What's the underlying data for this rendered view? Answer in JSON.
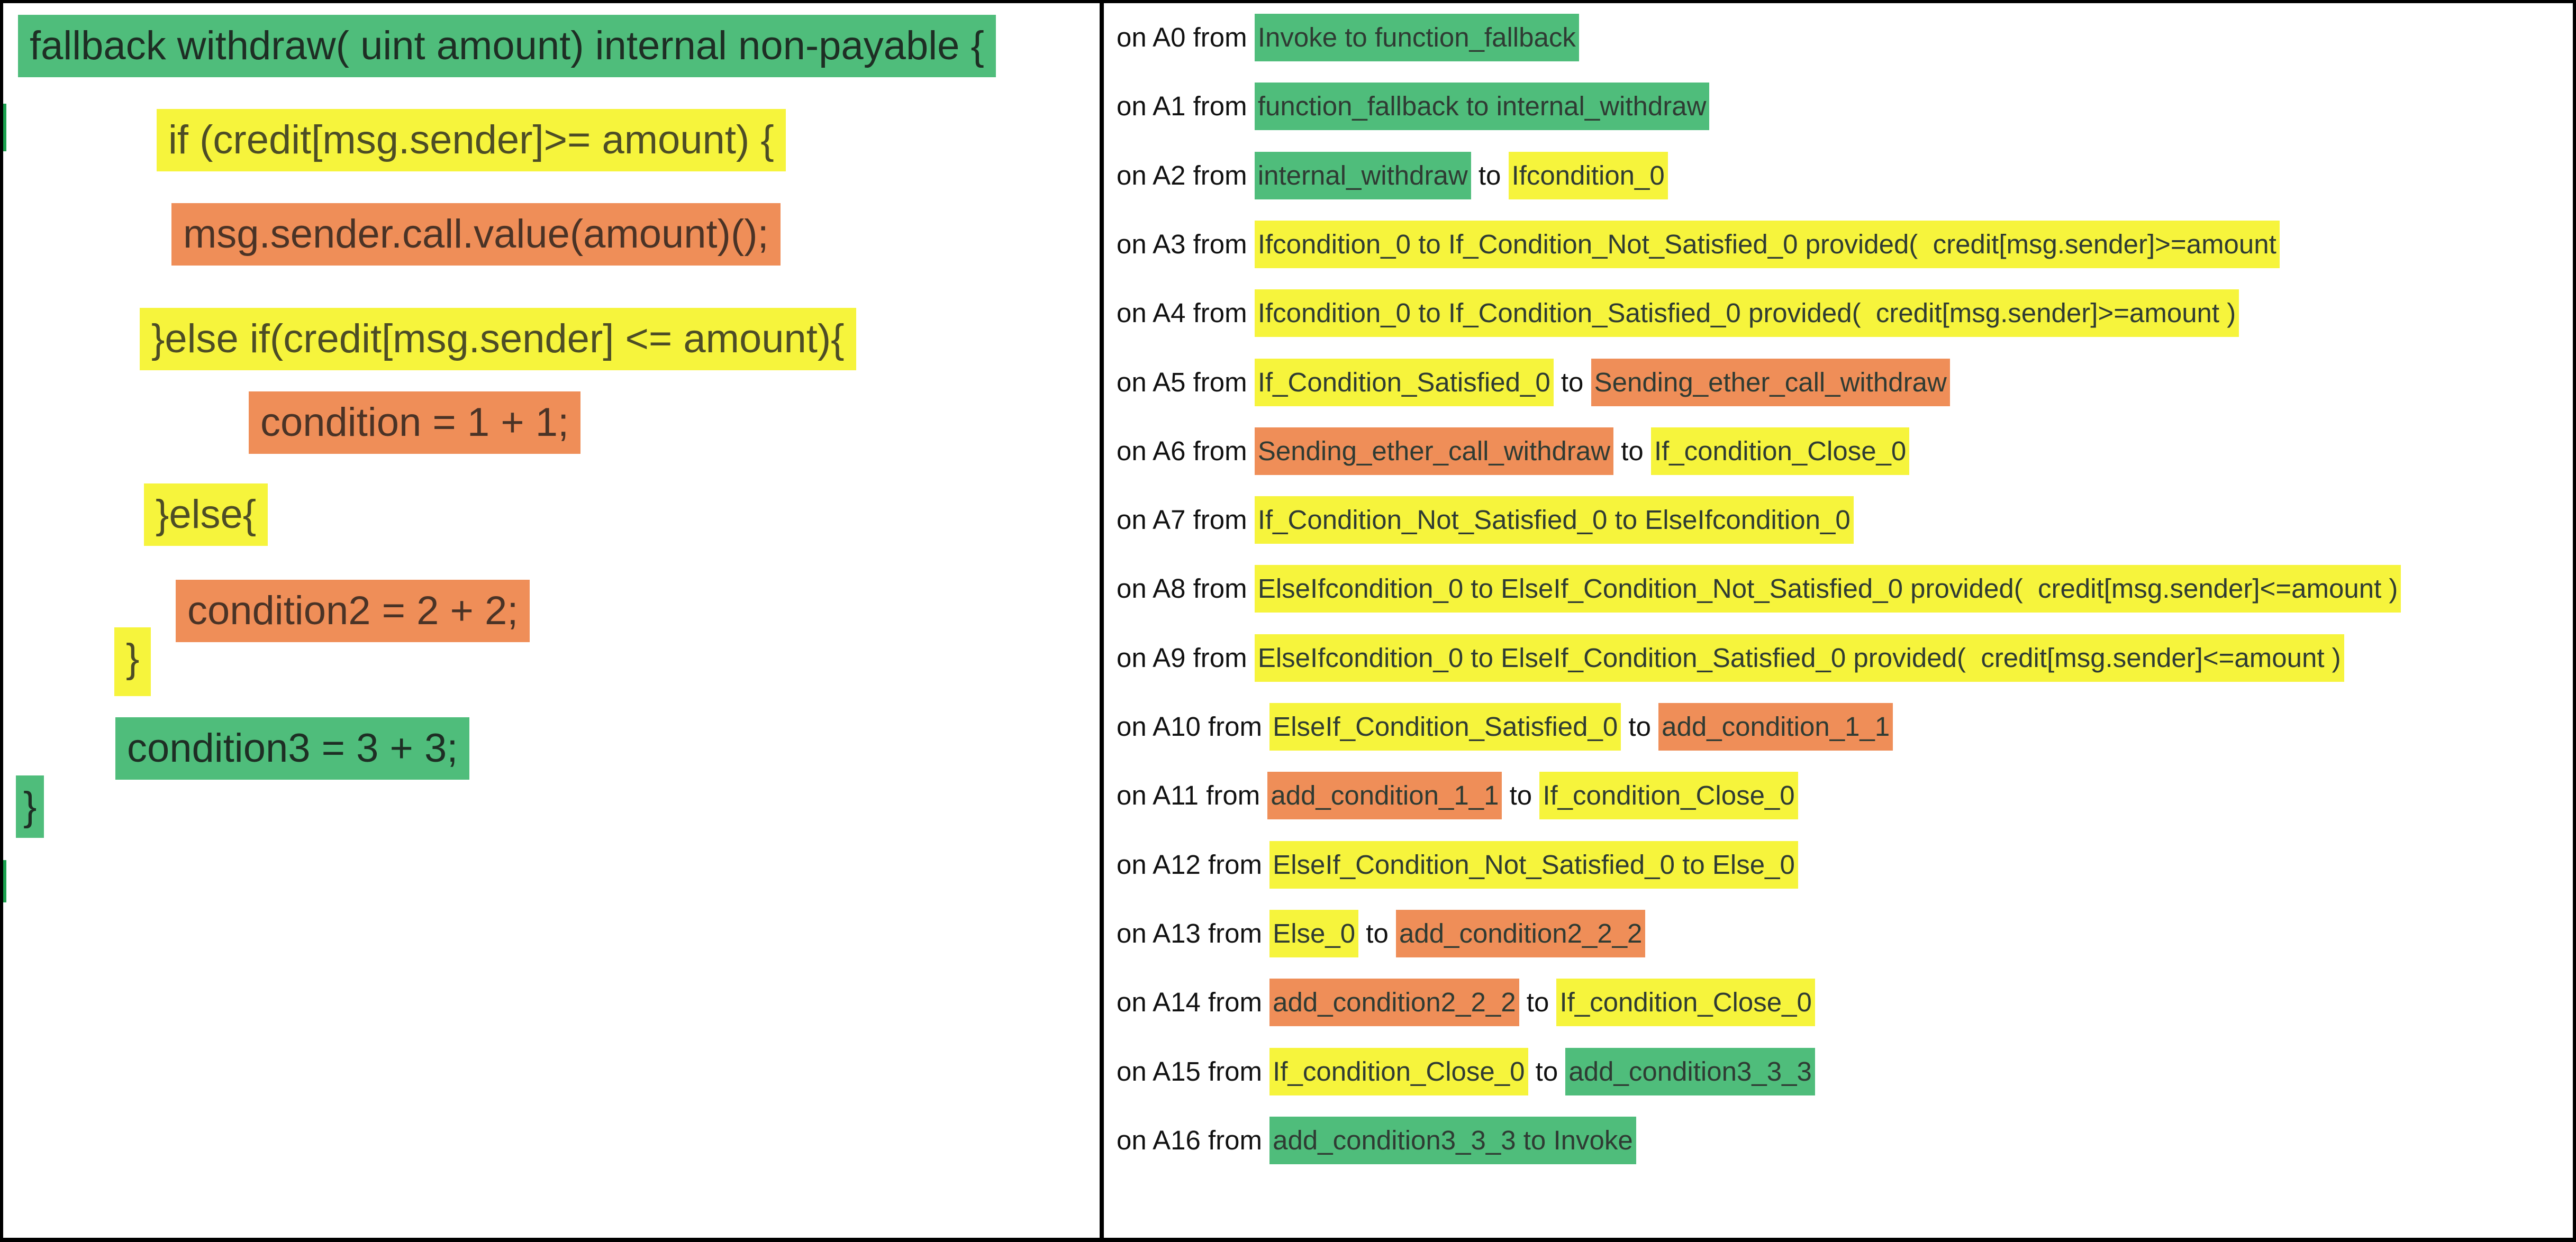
{
  "colors": {
    "green": "#4fbd7b",
    "yellow": "#f6f43c",
    "orange": "#ef8e58",
    "border": "#000000"
  },
  "code": {
    "lines": [
      {
        "text": "fallback withdraw( uint amount) internal non-payable {",
        "color": "green"
      },
      {
        "text": "if (credit[msg.sender]>= amount) {",
        "color": "yellow"
      },
      {
        "text": "msg.sender.call.value(amount)();",
        "color": "orange"
      },
      {
        "text": "}else if(credit[msg.sender] <= amount){",
        "color": "yellow"
      },
      {
        "text": "condition = 1 + 1;",
        "color": "orange"
      },
      {
        "text": "}else{",
        "color": "yellow"
      },
      {
        "text": "condition2 = 2 + 2;",
        "color": "orange"
      },
      {
        "text": "}",
        "color": "yellow"
      },
      {
        "text": "condition3 = 3 + 3;",
        "color": "green"
      },
      {
        "text": "}",
        "color": "green"
      }
    ]
  },
  "transitions": [
    {
      "prefix": "on A0 from ",
      "parts": [
        {
          "text": "Invoke to function_fallback",
          "color": "green"
        }
      ]
    },
    {
      "prefix": "on A1 from ",
      "parts": [
        {
          "text": "function_fallback to internal_withdraw",
          "color": "green"
        }
      ]
    },
    {
      "prefix": "on A2 from ",
      "parts": [
        {
          "text": "internal_withdraw",
          "color": "green"
        },
        {
          "text": " to ",
          "color": "plain"
        },
        {
          "text": "Ifcondition_0",
          "color": "yellow"
        }
      ]
    },
    {
      "prefix": "on A3 from ",
      "parts": [
        {
          "text": "Ifcondition_0 to If_Condition_Not_Satisfied_0 provided(  credit[msg.sender]>=amount",
          "color": "yellow"
        }
      ]
    },
    {
      "prefix": "on A4 from ",
      "parts": [
        {
          "text": "Ifcondition_0 to If_Condition_Satisfied_0 provided(  credit[msg.sender]>=amount )",
          "color": "yellow"
        }
      ]
    },
    {
      "prefix": "on A5 from ",
      "parts": [
        {
          "text": "If_Condition_Satisfied_0",
          "color": "yellow"
        },
        {
          "text": " to ",
          "color": "plain"
        },
        {
          "text": "Sending_ether_call_withdraw",
          "color": "orange"
        }
      ]
    },
    {
      "prefix": "on A6 from ",
      "parts": [
        {
          "text": "Sending_ether_call_withdraw",
          "color": "orange"
        },
        {
          "text": " to ",
          "color": "plain"
        },
        {
          "text": "If_condition_Close_0",
          "color": "yellow"
        }
      ]
    },
    {
      "prefix": "on A7 from ",
      "parts": [
        {
          "text": "If_Condition_Not_Satisfied_0 to ElseIfcondition_0",
          "color": "yellow"
        }
      ]
    },
    {
      "prefix": "on A8 from ",
      "parts": [
        {
          "text": "ElseIfcondition_0 to ElseIf_Condition_Not_Satisfied_0 provided(  credit[msg.sender]<=amount )",
          "color": "yellow"
        }
      ]
    },
    {
      "prefix": "on A9 from ",
      "parts": [
        {
          "text": "ElseIfcondition_0 to ElseIf_Condition_Satisfied_0 provided(  credit[msg.sender]<=amount )",
          "color": "yellow"
        }
      ]
    },
    {
      "prefix": "on A10 from ",
      "parts": [
        {
          "text": "ElseIf_Condition_Satisfied_0",
          "color": "yellow"
        },
        {
          "text": " to ",
          "color": "plain"
        },
        {
          "text": "add_condition_1_1",
          "color": "orange"
        }
      ]
    },
    {
      "prefix": "on A11 from ",
      "parts": [
        {
          "text": "add_condition_1_1",
          "color": "orange"
        },
        {
          "text": " to ",
          "color": "plain"
        },
        {
          "text": "If_condition_Close_0",
          "color": "yellow"
        }
      ]
    },
    {
      "prefix": "on A12 from ",
      "parts": [
        {
          "text": "ElseIf_Condition_Not_Satisfied_0 to Else_0",
          "color": "yellow"
        }
      ]
    },
    {
      "prefix": "on A13 from ",
      "parts": [
        {
          "text": "Else_0",
          "color": "yellow"
        },
        {
          "text": " to ",
          "color": "plain"
        },
        {
          "text": "add_condition2_2_2",
          "color": "orange"
        }
      ]
    },
    {
      "prefix": "on A14 from ",
      "parts": [
        {
          "text": "add_condition2_2_2",
          "color": "orange"
        },
        {
          "text": " to ",
          "color": "plain"
        },
        {
          "text": "If_condition_Close_0",
          "color": "yellow"
        }
      ]
    },
    {
      "prefix": "on A15 from ",
      "parts": [
        {
          "text": "If_condition_Close_0",
          "color": "yellow"
        },
        {
          "text": " to ",
          "color": "plain"
        },
        {
          "text": "add_condition3_3_3",
          "color": "green"
        }
      ]
    },
    {
      "prefix": "on A16 from ",
      "parts": [
        {
          "text": "add_condition3_3_3 to Invoke",
          "color": "green"
        }
      ]
    }
  ]
}
